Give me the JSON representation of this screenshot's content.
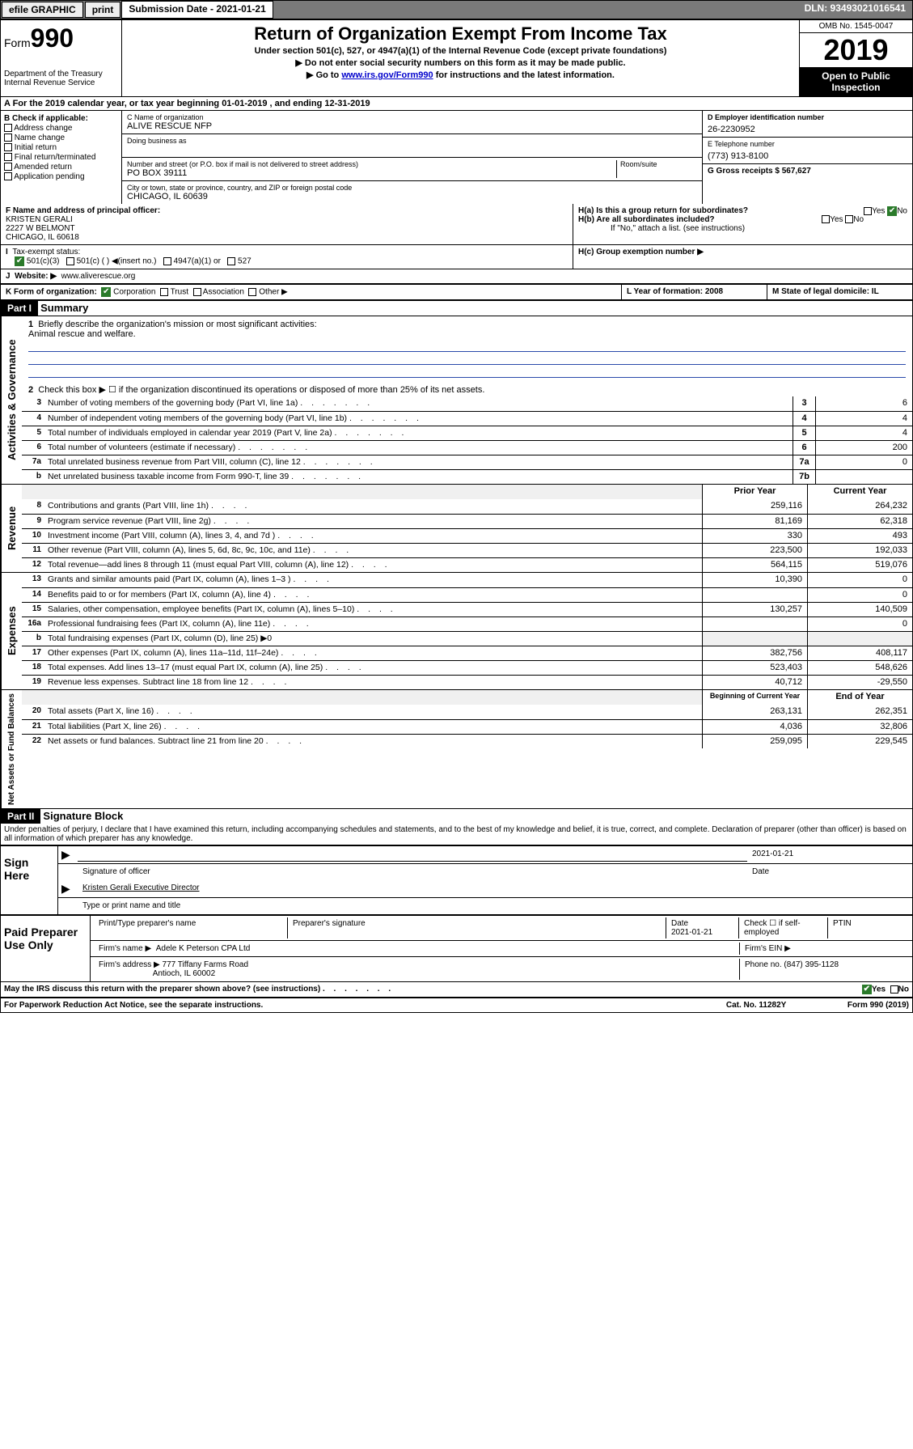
{
  "topbar": {
    "efile": "efile GRAPHIC",
    "print": "print",
    "sub_label": "Submission Date - 2021-01-21",
    "dln": "DLN: 93493021016541"
  },
  "header": {
    "form_prefix": "Form",
    "form_num": "990",
    "dept1": "Department of the Treasury",
    "dept2": "Internal Revenue Service",
    "title": "Return of Organization Exempt From Income Tax",
    "sub1": "Under section 501(c), 527, or 4947(a)(1) of the Internal Revenue Code (except private foundations)",
    "sub2": "▶ Do not enter social security numbers on this form as it may be made public.",
    "sub3_pre": "▶ Go to ",
    "sub3_link": "www.irs.gov/Form990",
    "sub3_post": " for instructions and the latest information.",
    "omb": "OMB No. 1545-0047",
    "year": "2019",
    "open1": "Open to Public",
    "open2": "Inspection"
  },
  "rowA": "A   For the 2019 calendar year, or tax year beginning 01-01-2019     , and ending 12-31-2019",
  "colB": {
    "label": "B Check if applicable:",
    "items": [
      "Address change",
      "Name change",
      "Initial return",
      "Final return/terminated",
      "Amended return",
      "Application pending"
    ]
  },
  "colC": {
    "name_label": "C Name of organization",
    "name": "ALIVE RESCUE NFP",
    "dba_label": "Doing business as",
    "addr_label": "Number and street (or P.O. box if mail is not delivered to street address)",
    "room_label": "Room/suite",
    "addr": "PO BOX 39111",
    "city_label": "City or town, state or province, country, and ZIP or foreign postal code",
    "city": "CHICAGO, IL  60639"
  },
  "colD": {
    "ein_label": "D Employer identification number",
    "ein": "26-2230952",
    "phone_label": "E Telephone number",
    "phone": "(773) 913-8100",
    "gross_label": "G Gross receipts $ 567,627"
  },
  "rowF": {
    "label": "F  Name and address of principal officer:",
    "name": "KRISTEN GERALI",
    "addr1": "2227 W BELMONT",
    "addr2": "CHICAGO, IL  60618"
  },
  "rowH": {
    "ha": "H(a)  Is this a group return for subordinates?",
    "hb": "H(b)  Are all subordinates included?",
    "hb_note": "If \"No,\" attach a list. (see instructions)",
    "hc": "H(c)  Group exemption number ▶",
    "yes": "Yes",
    "no": "No"
  },
  "rowI": {
    "label": "Tax-exempt status:",
    "opts": [
      "501(c)(3)",
      "501(c) (  ) ◀(insert no.)",
      "4947(a)(1) or",
      "527"
    ]
  },
  "rowJ": {
    "label": "Website: ▶",
    "val": "www.aliverescue.org"
  },
  "rowK": {
    "label": "K Form of organization:",
    "opts": [
      "Corporation",
      "Trust",
      "Association",
      "Other ▶"
    ],
    "L": "L Year of formation: 2008",
    "M": "M State of legal domicile: IL"
  },
  "part1": {
    "hdr": "Part I",
    "title": "Summary",
    "q1": "Briefly describe the organization's mission or most significant activities:",
    "mission": "Animal rescue and welfare.",
    "q2": "Check this box ▶ ☐  if the organization discontinued its operations or disposed of more than 25% of its net assets.",
    "lines_gov": [
      {
        "n": "3",
        "t": "Number of voting members of the governing body (Part VI, line 1a)",
        "box": "3",
        "v": "6"
      },
      {
        "n": "4",
        "t": "Number of independent voting members of the governing body (Part VI, line 1b)",
        "box": "4",
        "v": "4"
      },
      {
        "n": "5",
        "t": "Total number of individuals employed in calendar year 2019 (Part V, line 2a)",
        "box": "5",
        "v": "4"
      },
      {
        "n": "6",
        "t": "Total number of volunteers (estimate if necessary)",
        "box": "6",
        "v": "200"
      },
      {
        "n": "7a",
        "t": "Total unrelated business revenue from Part VIII, column (C), line 12",
        "box": "7a",
        "v": "0"
      },
      {
        "n": "b",
        "t": "Net unrelated business taxable income from Form 990-T, line 39",
        "box": "7b",
        "v": ""
      }
    ],
    "col_prior": "Prior Year",
    "col_curr": "Current Year",
    "lines_rev": [
      {
        "n": "8",
        "t": "Contributions and grants (Part VIII, line 1h)",
        "p": "259,116",
        "c": "264,232"
      },
      {
        "n": "9",
        "t": "Program service revenue (Part VIII, line 2g)",
        "p": "81,169",
        "c": "62,318"
      },
      {
        "n": "10",
        "t": "Investment income (Part VIII, column (A), lines 3, 4, and 7d )",
        "p": "330",
        "c": "493"
      },
      {
        "n": "11",
        "t": "Other revenue (Part VIII, column (A), lines 5, 6d, 8c, 9c, 10c, and 11e)",
        "p": "223,500",
        "c": "192,033"
      },
      {
        "n": "12",
        "t": "Total revenue—add lines 8 through 11 (must equal Part VIII, column (A), line 12)",
        "p": "564,115",
        "c": "519,076"
      }
    ],
    "lines_exp": [
      {
        "n": "13",
        "t": "Grants and similar amounts paid (Part IX, column (A), lines 1–3 )",
        "p": "10,390",
        "c": "0"
      },
      {
        "n": "14",
        "t": "Benefits paid to or for members (Part IX, column (A), line 4)",
        "p": "",
        "c": "0"
      },
      {
        "n": "15",
        "t": "Salaries, other compensation, employee benefits (Part IX, column (A), lines 5–10)",
        "p": "130,257",
        "c": "140,509"
      },
      {
        "n": "16a",
        "t": "Professional fundraising fees (Part IX, column (A), line 11e)",
        "p": "",
        "c": "0"
      },
      {
        "n": "b",
        "t": "Total fundraising expenses (Part IX, column (D), line 25) ▶0",
        "p": "",
        "c": "",
        "shade": true
      },
      {
        "n": "17",
        "t": "Other expenses (Part IX, column (A), lines 11a–11d, 11f–24e)",
        "p": "382,756",
        "c": "408,117"
      },
      {
        "n": "18",
        "t": "Total expenses. Add lines 13–17 (must equal Part IX, column (A), line 25)",
        "p": "523,403",
        "c": "548,626"
      },
      {
        "n": "19",
        "t": "Revenue less expenses. Subtract line 18 from line 12",
        "p": "40,712",
        "c": "-29,550"
      }
    ],
    "col_begin": "Beginning of Current Year",
    "col_end": "End of Year",
    "lines_net": [
      {
        "n": "20",
        "t": "Total assets (Part X, line 16)",
        "p": "263,131",
        "c": "262,351"
      },
      {
        "n": "21",
        "t": "Total liabilities (Part X, line 26)",
        "p": "4,036",
        "c": "32,806"
      },
      {
        "n": "22",
        "t": "Net assets or fund balances. Subtract line 21 from line 20",
        "p": "259,095",
        "c": "229,545"
      }
    ]
  },
  "part2": {
    "hdr": "Part II",
    "title": "Signature Block",
    "decl": "Under penalties of perjury, I declare that I have examined this return, including accompanying schedules and statements, and to the best of my knowledge and belief, it is true, correct, and complete. Declaration of preparer (other than officer) is based on all information of which preparer has any knowledge."
  },
  "sign": {
    "label": "Sign Here",
    "sig_officer": "Signature of officer",
    "date": "2021-01-21",
    "date_label": "Date",
    "name": "Kristen Gerali  Executive Director",
    "name_label": "Type or print name and title"
  },
  "paid": {
    "label": "Paid Preparer Use Only",
    "c1": "Print/Type preparer's name",
    "c2": "Preparer's signature",
    "c3": "Date",
    "c3v": "2021-01-21",
    "c4": "Check ☐ if self-employed",
    "c5": "PTIN",
    "firm_label": "Firm's name    ▶",
    "firm": "Adele K Peterson CPA Ltd",
    "ein_label": "Firm's EIN ▶",
    "addr_label": "Firm's address ▶",
    "addr1": "777 Tiffany Farms Road",
    "addr2": "Antioch, IL  60002",
    "phone_label": "Phone no. (847) 395-1128"
  },
  "footer": {
    "discuss": "May the IRS discuss this return with the preparer shown above? (see instructions)",
    "paperwork": "For Paperwork Reduction Act Notice, see the separate instructions.",
    "cat": "Cat. No. 11282Y",
    "form": "Form 990 (2019)"
  },
  "tabs": {
    "gov": "Activities & Governance",
    "rev": "Revenue",
    "exp": "Expenses",
    "net": "Net Assets or Fund Balances"
  }
}
